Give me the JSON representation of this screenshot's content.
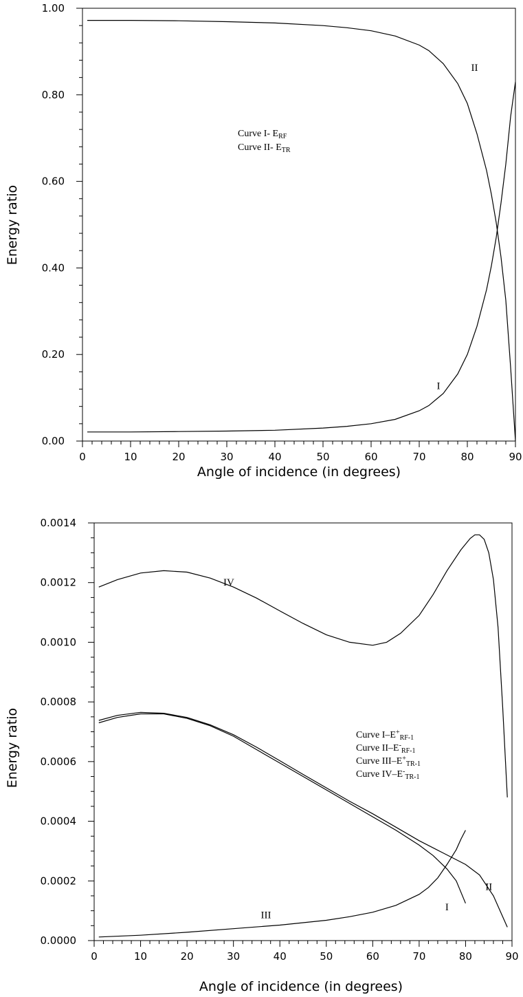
{
  "chart_data": [
    {
      "type": "line",
      "xlabel": "Angle of incidence (in degrees)",
      "ylabel": "Energy ratio",
      "xlim": [
        0,
        90
      ],
      "ylim": [
        0,
        1
      ],
      "x_ticks": [
        "0",
        "10",
        "20",
        "30",
        "40",
        "50",
        "60",
        "70",
        "80",
        "90"
      ],
      "y_ticks": [
        "0.00",
        "0.20",
        "0.40",
        "0.60",
        "0.80",
        "1.00"
      ],
      "legend": [
        {
          "prefix": "Curve I- E",
          "sub": "RF"
        },
        {
          "prefix": "Curve II- E",
          "sub": "TR"
        }
      ],
      "series": [
        {
          "name": "I",
          "x": [
            1,
            10,
            20,
            30,
            40,
            50,
            55,
            60,
            65,
            70,
            72,
            75,
            78,
            80,
            82,
            84,
            85,
            86,
            87,
            88,
            89,
            90
          ],
          "y": [
            0.021,
            0.021,
            0.022,
            0.023,
            0.025,
            0.03,
            0.034,
            0.04,
            0.05,
            0.07,
            0.082,
            0.11,
            0.155,
            0.2,
            0.265,
            0.35,
            0.405,
            0.47,
            0.55,
            0.64,
            0.75,
            0.83
          ]
        },
        {
          "name": "II",
          "x": [
            1,
            10,
            20,
            30,
            40,
            50,
            55,
            60,
            65,
            70,
            72,
            75,
            78,
            80,
            82,
            84,
            85,
            86,
            87,
            88,
            89,
            90
          ],
          "y": [
            0.972,
            0.972,
            0.971,
            0.969,
            0.966,
            0.96,
            0.955,
            0.948,
            0.936,
            0.915,
            0.902,
            0.872,
            0.826,
            0.78,
            0.71,
            0.625,
            0.57,
            0.505,
            0.425,
            0.325,
            0.17,
            0.0
          ]
        }
      ],
      "curve_labels": [
        {
          "text": "I",
          "x": 74,
          "y": 0.12
        },
        {
          "text": "II",
          "x": 81.5,
          "y": 0.855
        }
      ]
    },
    {
      "type": "line",
      "xlabel": "Angle of incidence (in degrees)",
      "ylabel": "Energy ratio",
      "xlim": [
        0,
        90
      ],
      "ylim": [
        0,
        0.0014
      ],
      "x_ticks": [
        "0",
        "10",
        "20",
        "30",
        "40",
        "50",
        "60",
        "70",
        "80",
        "90"
      ],
      "y_ticks": [
        "0.0000",
        "0.0002",
        "0.0004",
        "0.0006",
        "0.0008",
        "0.0010",
        "0.0012",
        "0.0014"
      ],
      "legend": [
        {
          "prefix": "Curve I–E",
          "sup": "+",
          "sub": "RF-1"
        },
        {
          "prefix": "Curve II–E",
          "sup": "-",
          "sub": "RF-1"
        },
        {
          "prefix": "Curve III–E",
          "sup": "+",
          "sub": "TR-1"
        },
        {
          "prefix": "Curve IV–E",
          "sup": "-",
          "sub": "TR-1"
        }
      ],
      "series": [
        {
          "name": "I",
          "x": [
            1,
            5,
            10,
            15,
            20,
            25,
            30,
            35,
            40,
            45,
            50,
            55,
            60,
            65,
            70,
            73,
            76,
            78,
            80
          ],
          "y": [
            0.00073,
            0.000748,
            0.00076,
            0.00076,
            0.000745,
            0.00072,
            0.000685,
            0.00064,
            0.000595,
            0.00055,
            0.000505,
            0.00046,
            0.000415,
            0.00037,
            0.00032,
            0.000285,
            0.00024,
            0.0002,
            0.000125
          ]
        },
        {
          "name": "II",
          "x": [
            1,
            5,
            10,
            15,
            20,
            25,
            30,
            35,
            40,
            45,
            50,
            55,
            60,
            65,
            70,
            75,
            80,
            83,
            86,
            89
          ],
          "y": [
            0.000738,
            0.000755,
            0.000765,
            0.000762,
            0.000748,
            0.000723,
            0.00069,
            0.000648,
            0.000603,
            0.000557,
            0.000512,
            0.000467,
            0.000425,
            0.00038,
            0.000335,
            0.000295,
            0.000255,
            0.00022,
            0.00015,
            4.5e-05
          ]
        },
        {
          "name": "III",
          "x": [
            1,
            10,
            20,
            30,
            40,
            50,
            55,
            60,
            65,
            70,
            72,
            74,
            76,
            78,
            79,
            80
          ],
          "y": [
            1.2e-05,
            1.8e-05,
            2.8e-05,
            4e-05,
            5.2e-05,
            6.8e-05,
            8e-05,
            9.5e-05,
            0.000118,
            0.000155,
            0.000178,
            0.00021,
            0.000255,
            0.000305,
            0.00034,
            0.00037
          ]
        },
        {
          "name": "IV",
          "x": [
            1,
            5,
            10,
            15,
            20,
            25,
            30,
            35,
            40,
            45,
            50,
            55,
            60,
            63,
            66,
            70,
            73,
            76,
            79,
            81,
            82,
            83,
            84,
            85,
            86,
            87,
            88,
            89
          ],
          "y": [
            0.001185,
            0.00121,
            0.001232,
            0.00124,
            0.001235,
            0.001215,
            0.001185,
            0.001148,
            0.001105,
            0.001063,
            0.001025,
            0.001,
            0.00099,
            0.001,
            0.00103,
            0.00109,
            0.00116,
            0.00124,
            0.00131,
            0.001348,
            0.00136,
            0.00136,
            0.001345,
            0.0013,
            0.00121,
            0.00105,
            0.00078,
            0.00048
          ]
        }
      ],
      "curve_labels": [
        {
          "text": "IV",
          "x": 29,
          "y": 0.00119
        },
        {
          "text": "III",
          "x": 37,
          "y": 7.5e-05
        },
        {
          "text": "I",
          "x": 76,
          "y": 0.000102
        },
        {
          "text": "II",
          "x": 85,
          "y": 0.00017
        }
      ]
    }
  ]
}
